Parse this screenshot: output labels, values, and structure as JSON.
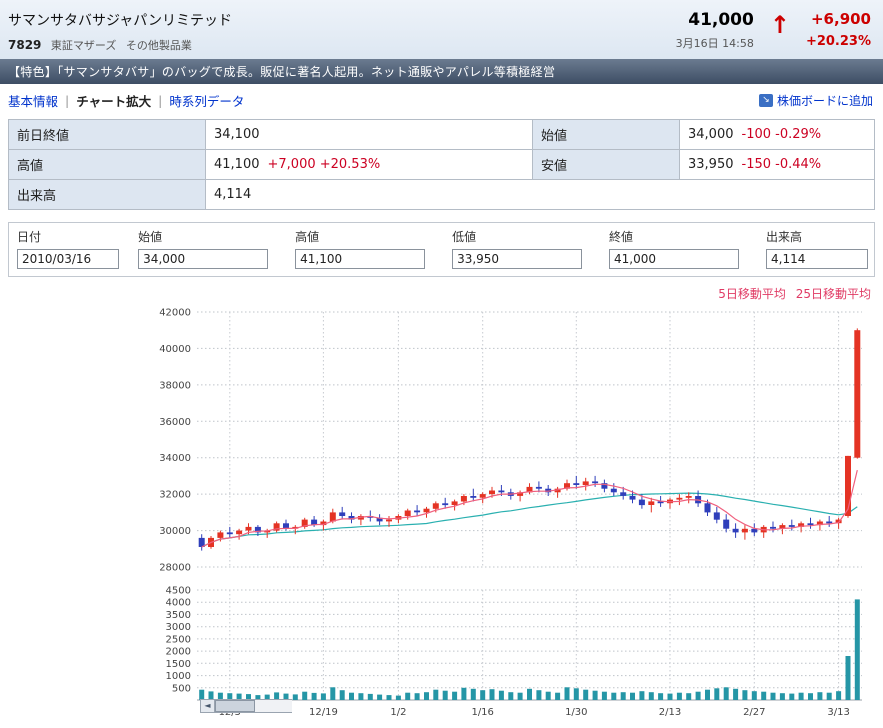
{
  "header": {
    "title": "サマンサタバサジャパンリミテッド",
    "code": "7829",
    "market": "東証マザーズ",
    "industry": "その他製品業",
    "price": "41,000",
    "datetime": "3月16日 14:58",
    "arrow": "↑",
    "change": "+6,900",
    "change_pct": "+20.23%",
    "up_color": "#cc0000"
  },
  "feature_bar": {
    "text": "【特色】「サマンサタバサ」のバッグで成長。販促に著名人起用。ネット通販やアパレル等積極経営"
  },
  "nav": {
    "items": [
      "基本情報",
      "チャート拡大",
      "時系列データ"
    ],
    "separator": "|",
    "add_board": "株価ボードに追加",
    "add_board_icon": "↘"
  },
  "summary_table": {
    "rows": [
      {
        "label": "前日終値",
        "value": "34,100",
        "change": ""
      },
      {
        "label": "始値",
        "value": "34,000",
        "change": "-100 -0.29%"
      },
      {
        "label": "高値",
        "value": "41,100",
        "change": "+7,000 +20.53%"
      },
      {
        "label": "安値",
        "value": "33,950",
        "change": "-150 -0.44%"
      },
      {
        "label": "出来高",
        "value": "4,114",
        "change": ""
      }
    ]
  },
  "timeseries": {
    "headers": [
      "日付",
      "始値",
      "高値",
      "低値",
      "終値",
      "出来高"
    ],
    "row": [
      "2010/03/16",
      "34,000",
      "41,100",
      "33,950",
      "41,000",
      "4,114"
    ]
  },
  "chart_data": {
    "type": "candlestick",
    "title": "",
    "price_axis": {
      "min": 28000,
      "max": 42000,
      "step": 2000
    },
    "volume_axis": {
      "min": 0,
      "max": 4500,
      "step": 500
    },
    "x_tick_labels": [
      "12/5",
      "12/19",
      "1/2",
      "1/16",
      "1/30",
      "2/13",
      "2/27",
      "3/13"
    ],
    "x_tick_indices": [
      3,
      13,
      21,
      30,
      40,
      50,
      59,
      68
    ],
    "legend": [
      {
        "label": "5日移動平均",
        "color": "#e03a64"
      },
      {
        "label": "25日移動平均",
        "color": "#e03a64"
      }
    ],
    "colors": {
      "up": "#e43324",
      "down": "#2f3fbb",
      "volume": "#2596a6",
      "ma5": "#f0607e",
      "ma25": "#2ab0b0"
    },
    "candles": [
      [
        29600,
        29800,
        28900,
        29100,
        420
      ],
      [
        29100,
        29700,
        29000,
        29600,
        350
      ],
      [
        29600,
        30000,
        29400,
        29900,
        300
      ],
      [
        29900,
        30200,
        29600,
        29800,
        280
      ],
      [
        29800,
        30100,
        29500,
        30000,
        260
      ],
      [
        30000,
        30400,
        29800,
        30200,
        240
      ],
      [
        30200,
        30300,
        29700,
        29900,
        200
      ],
      [
        29900,
        30100,
        29600,
        30000,
        220
      ],
      [
        30000,
        30500,
        29900,
        30400,
        310
      ],
      [
        30400,
        30600,
        30000,
        30100,
        260
      ],
      [
        30100,
        30300,
        29800,
        30200,
        230
      ],
      [
        30200,
        30700,
        30100,
        30600,
        340
      ],
      [
        30600,
        30800,
        30200,
        30300,
        290
      ],
      [
        30300,
        30600,
        30000,
        30500,
        270
      ],
      [
        30500,
        31200,
        30400,
        31000,
        520
      ],
      [
        31000,
        31300,
        30600,
        30800,
        400
      ],
      [
        30800,
        31000,
        30400,
        30600,
        300
      ],
      [
        30600,
        30900,
        30300,
        30800,
        280
      ],
      [
        30800,
        31100,
        30500,
        30700,
        250
      ],
      [
        30700,
        30900,
        30300,
        30500,
        220
      ],
      [
        30500,
        30800,
        30200,
        30600,
        200
      ],
      [
        30600,
        30900,
        30400,
        30800,
        180
      ],
      [
        30800,
        31200,
        30600,
        31100,
        300
      ],
      [
        31100,
        31400,
        30800,
        31000,
        280
      ],
      [
        31000,
        31300,
        30700,
        31200,
        320
      ],
      [
        31200,
        31600,
        31000,
        31500,
        420
      ],
      [
        31500,
        31800,
        31200,
        31400,
        380
      ],
      [
        31400,
        31700,
        31100,
        31600,
        340
      ],
      [
        31600,
        32000,
        31400,
        31900,
        500
      ],
      [
        31900,
        32300,
        31600,
        31800,
        460
      ],
      [
        31800,
        32100,
        31500,
        32000,
        400
      ],
      [
        32000,
        32400,
        31800,
        32200,
        440
      ],
      [
        32200,
        32500,
        31900,
        32100,
        380
      ],
      [
        32100,
        32300,
        31700,
        31900,
        320
      ],
      [
        31900,
        32200,
        31600,
        32100,
        300
      ],
      [
        32100,
        32600,
        32000,
        32400,
        460
      ],
      [
        32400,
        32700,
        32100,
        32300,
        400
      ],
      [
        32300,
        32500,
        31900,
        32100,
        340
      ],
      [
        32100,
        32400,
        31800,
        32300,
        300
      ],
      [
        32300,
        32800,
        32200,
        32600,
        520
      ],
      [
        32600,
        33000,
        32300,
        32500,
        480
      ],
      [
        32500,
        32900,
        32200,
        32700,
        420
      ],
      [
        32700,
        33000,
        32400,
        32600,
        380
      ],
      [
        32600,
        32800,
        32100,
        32300,
        340
      ],
      [
        32300,
        32600,
        31900,
        32100,
        300
      ],
      [
        32100,
        32400,
        31700,
        31900,
        320
      ],
      [
        31900,
        32200,
        31500,
        31700,
        300
      ],
      [
        31700,
        32000,
        31200,
        31400,
        360
      ],
      [
        31400,
        31800,
        31000,
        31600,
        320
      ],
      [
        31600,
        31900,
        31300,
        31500,
        280
      ],
      [
        31500,
        31800,
        31200,
        31700,
        260
      ],
      [
        31700,
        32000,
        31400,
        31800,
        300
      ],
      [
        31800,
        32100,
        31500,
        31900,
        280
      ],
      [
        31900,
        32200,
        31300,
        31500,
        340
      ],
      [
        31500,
        31700,
        30800,
        31000,
        420
      ],
      [
        31000,
        31300,
        30400,
        30600,
        480
      ],
      [
        30600,
        30900,
        29900,
        30100,
        520
      ],
      [
        30100,
        30400,
        29600,
        29900,
        460
      ],
      [
        29900,
        30300,
        29500,
        30100,
        400
      ],
      [
        30100,
        30400,
        29700,
        29900,
        360
      ],
      [
        29900,
        30300,
        29600,
        30200,
        340
      ],
      [
        30200,
        30500,
        29900,
        30100,
        300
      ],
      [
        30100,
        30400,
        29800,
        30300,
        280
      ],
      [
        30300,
        30600,
        30000,
        30200,
        260
      ],
      [
        30200,
        30500,
        29900,
        30400,
        300
      ],
      [
        30400,
        30700,
        30100,
        30300,
        280
      ],
      [
        30300,
        30600,
        30000,
        30500,
        320
      ],
      [
        30500,
        30800,
        30200,
        30400,
        300
      ],
      [
        30400,
        30700,
        30100,
        30600,
        360
      ],
      [
        30800,
        34100,
        30700,
        34100,
        1800
      ],
      [
        34000,
        41100,
        33950,
        41000,
        4114
      ]
    ]
  }
}
